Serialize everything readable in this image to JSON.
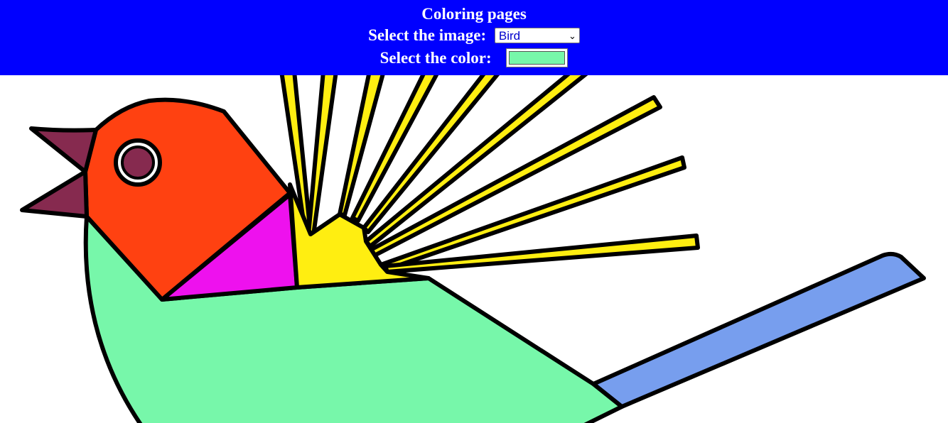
{
  "header": {
    "title": "Coloring pages",
    "image_label": "Select the image:",
    "image_value": "Bird",
    "color_label": "Select the color:",
    "selected_color": "#77f7aa"
  },
  "colors": {
    "header_bg": "#0000ff",
    "beak": "#862a4f",
    "head": "#ff4111",
    "eye": "#862a4f",
    "neck": "#ee11ee",
    "feathers": "#ffee11",
    "body": "#77f7aa",
    "tail": "#779eee"
  }
}
